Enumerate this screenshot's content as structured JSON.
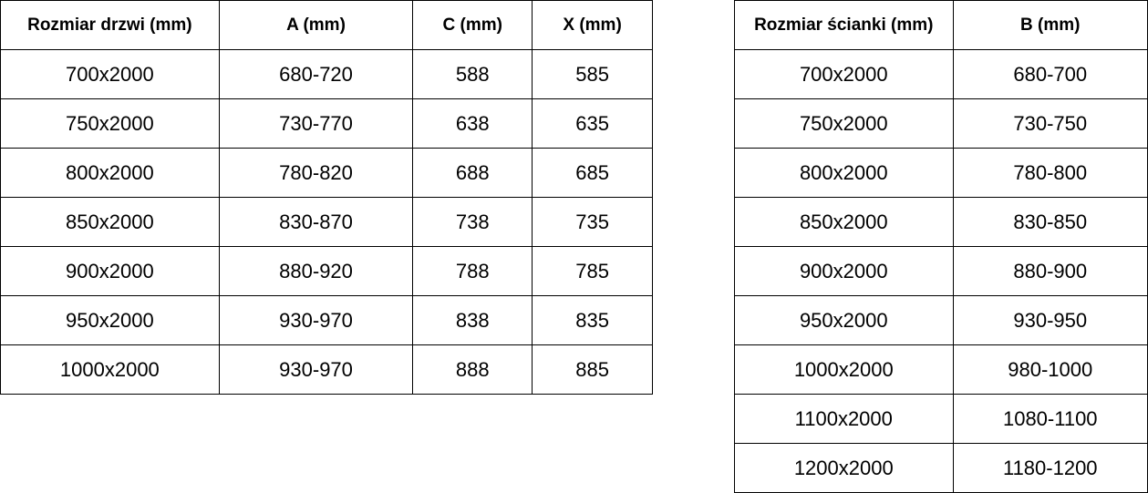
{
  "door_table": {
    "headers": [
      "Rozmiar drzwi (mm)",
      "A (mm)",
      "C (mm)",
      "X (mm)"
    ],
    "rows": [
      [
        "700x2000",
        "680-720",
        "588",
        "585"
      ],
      [
        "750x2000",
        "730-770",
        "638",
        "635"
      ],
      [
        "800x2000",
        "780-820",
        "688",
        "685"
      ],
      [
        "850x2000",
        "830-870",
        "738",
        "735"
      ],
      [
        "900x2000",
        "880-920",
        "788",
        "785"
      ],
      [
        "950x2000",
        "930-970",
        "838",
        "835"
      ],
      [
        "1000x2000",
        "930-970",
        "888",
        "885"
      ]
    ]
  },
  "wall_table": {
    "headers": [
      "Rozmiar ścianki (mm)",
      "B (mm)"
    ],
    "rows": [
      [
        "700x2000",
        "680-700"
      ],
      [
        "750x2000",
        "730-750"
      ],
      [
        "800x2000",
        "780-800"
      ],
      [
        "850x2000",
        "830-850"
      ],
      [
        "900x2000",
        "880-900"
      ],
      [
        "950x2000",
        "930-950"
      ],
      [
        "1000x2000",
        "980-1000"
      ],
      [
        "1100x2000",
        "1080-1100"
      ],
      [
        "1200x2000",
        "1180-1200"
      ]
    ]
  }
}
